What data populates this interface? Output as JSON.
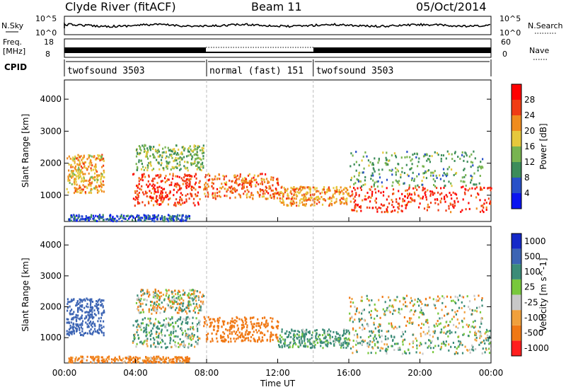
{
  "header": {
    "station": "Clyde River (fitACF)",
    "beam": "Beam 11",
    "date": "05/Oct/2014"
  },
  "panels": {
    "nsky_label": "N.Sky",
    "nsky_ticks": [
      "10^5",
      "10^0"
    ],
    "nsearch_label": "N.Search",
    "nsearch_ticks": [
      "10^5",
      "10^0"
    ],
    "freq_label": "Freq.",
    "freq_unit": "[MHz]",
    "freq_ticks": [
      "18",
      "8"
    ],
    "nave_label": "Nave",
    "nave_ticks": [
      "60",
      "0"
    ],
    "cpid_label": "CPID"
  },
  "cpid": [
    {
      "name": "twofsound 3503",
      "start_h": 0,
      "end_h": 8
    },
    {
      "name": "normal (fast) 151",
      "start_h": 8,
      "end_h": 14
    },
    {
      "name": "twofsound 3503",
      "start_h": 14,
      "end_h": 24
    }
  ],
  "chart_data": [
    {
      "type": "heatmap",
      "parameter": "power",
      "ylabel": "Slant Range [km]",
      "ylim": [
        180,
        4600
      ],
      "yticks": [
        "1000",
        "2000",
        "3000",
        "4000"
      ],
      "xlim_hours": [
        0,
        24
      ],
      "colorbar_label": "Power [dB]",
      "colorbar_ticks": [
        "4",
        "8",
        "12",
        "16",
        "20",
        "24",
        "28"
      ],
      "colorbar_colors": [
        "#0a14f0",
        "#2850c8",
        "#3c8c5a",
        "#78b450",
        "#e6c83c",
        "#f08c1e",
        "#f03c14",
        "#ff0000"
      ],
      "scatter_regions": [
        {
          "h": [
            0.1,
            2.2
          ],
          "r": [
            1100,
            2300
          ],
          "v": 20
        },
        {
          "h": [
            0.2,
            7.0
          ],
          "r": [
            220,
            420
          ],
          "v": 6
        },
        {
          "h": [
            3.8,
            7.6
          ],
          "r": [
            700,
            1700
          ],
          "v": 27
        },
        {
          "h": [
            4.0,
            7.8
          ],
          "r": [
            1800,
            2600
          ],
          "v": 14
        },
        {
          "h": [
            7.8,
            12.0
          ],
          "r": [
            900,
            1700
          ],
          "v": 24
        },
        {
          "h": [
            12.0,
            16.0
          ],
          "r": [
            700,
            1300
          ],
          "v": 21
        },
        {
          "h": [
            16.0,
            24.0
          ],
          "r": [
            500,
            1300
          ],
          "v": 27
        },
        {
          "h": [
            16.0,
            23.5
          ],
          "r": [
            1300,
            2400
          ],
          "v": 12
        }
      ]
    },
    {
      "type": "heatmap",
      "parameter": "velocity",
      "ylabel": "Slant Range [km]",
      "ylim": [
        180,
        4600
      ],
      "yticks": [
        "1000",
        "2000",
        "3000",
        "4000"
      ],
      "xlim_hours": [
        0,
        24
      ],
      "xticks": [
        "00:00",
        "04:00",
        "08:00",
        "12:00",
        "16:00",
        "20:00",
        "00:00"
      ],
      "xlabel": "Time UT",
      "colorbar_label": "Velocity [m s^-1]",
      "colorbar_ticks": [
        "1000",
        "500",
        "100",
        "25",
        "-25",
        "-100",
        "-500",
        "-1000"
      ],
      "colorbar_colors": [
        "#1428c8",
        "#3c64b4",
        "#3c8c78",
        "#78c83c",
        "#c8c8c8",
        "#f0a03c",
        "#f07814",
        "#ff1e1e"
      ],
      "scatter_regions": [
        {
          "h": [
            0.1,
            2.2
          ],
          "r": [
            1100,
            2300
          ],
          "v": 700
        },
        {
          "h": [
            0.2,
            7.0
          ],
          "r": [
            220,
            420
          ],
          "v": -200
        },
        {
          "h": [
            3.8,
            7.6
          ],
          "r": [
            700,
            1700
          ],
          "v": 150
        },
        {
          "h": [
            4.0,
            7.8
          ],
          "r": [
            1800,
            2600
          ],
          "v": 0
        },
        {
          "h": [
            7.8,
            12.0
          ],
          "r": [
            900,
            1700
          ],
          "v": -300
        },
        {
          "h": [
            12.0,
            16.0
          ],
          "r": [
            700,
            1300
          ],
          "v": 200
        },
        {
          "h": [
            16.0,
            24.0
          ],
          "r": [
            500,
            1300
          ],
          "v": 100
        },
        {
          "h": [
            16.0,
            23.5
          ],
          "r": [
            1300,
            2400
          ],
          "v": 0
        }
      ]
    }
  ]
}
